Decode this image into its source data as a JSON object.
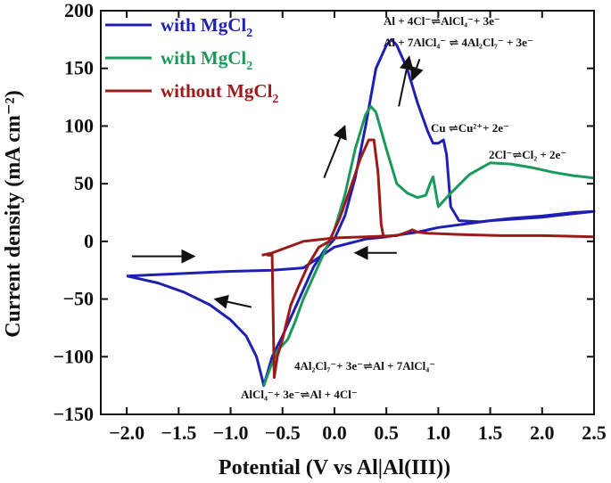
{
  "chart_data": {
    "type": "line",
    "xlabel": "Potential (V vs Al|Al(III))",
    "ylabel": "Current density (mA cm⁻²)",
    "xlim": [
      -2.25,
      2.5
    ],
    "ylim": [
      -150,
      200
    ],
    "xticks": [
      -2.0,
      -1.5,
      -1.0,
      -0.5,
      0.0,
      0.5,
      1.0,
      1.5,
      2.0,
      2.5
    ],
    "xtick_labels": [
      "−2.0",
      "−1.5",
      "−1.0",
      "−0.5",
      "0.0",
      "0.5",
      "1.0",
      "1.5",
      "2.0",
      "2.5"
    ],
    "yticks": [
      -150,
      -100,
      -50,
      0,
      50,
      100,
      150,
      200
    ],
    "ytick_labels": [
      "−150",
      "−100",
      "−50",
      "0",
      "50",
      "100",
      "150",
      "200"
    ],
    "legend_position": "top-left",
    "legend": [
      {
        "label": "with MgCl",
        "sub": "2",
        "color": "#1f1fb4"
      },
      {
        "label": "with MgCl",
        "sub": "2",
        "color": "#1a9a5a"
      },
      {
        "label": "without MgCl",
        "sub": "2",
        "color": "#9b1b1b"
      }
    ],
    "series": [
      {
        "color": "#1f1fb4",
        "x": [
          -2.0,
          -1.7,
          -1.45,
          -1.2,
          -1.0,
          -0.85,
          -0.75,
          -0.7,
          -0.68,
          -0.6,
          -0.5,
          -0.4,
          -0.3,
          -0.2,
          -0.1,
          0.0,
          0.1,
          0.2,
          0.3,
          0.4,
          0.5,
          0.55,
          0.6,
          0.7,
          0.8,
          0.9,
          0.95,
          1.0,
          1.05,
          1.08,
          1.12,
          1.2,
          1.4,
          1.7,
          2.0,
          2.3,
          2.5,
          2.3,
          2.0,
          1.5,
          1.0,
          0.8,
          0.5,
          0.3,
          0.0,
          -0.3,
          -0.6,
          -1.0,
          -1.5,
          -2.0
        ],
        "y": [
          -30,
          -36,
          -44,
          -55,
          -68,
          -82,
          -100,
          -118,
          -125,
          -100,
          -82,
          -62,
          -42,
          -22,
          -8,
          2,
          22,
          55,
          100,
          150,
          170,
          175,
          170,
          150,
          120,
          95,
          85,
          85,
          88,
          75,
          30,
          18,
          17,
          20,
          22,
          25,
          26,
          24,
          21,
          18,
          12,
          8,
          4,
          2,
          -5,
          -23,
          -25,
          -26,
          -28,
          -30
        ]
      },
      {
        "color": "#1a9a5a",
        "x": [
          -0.68,
          -0.62,
          -0.55,
          -0.45,
          -0.38,
          -0.3,
          -0.2,
          -0.1,
          0.0,
          0.1,
          0.2,
          0.3,
          0.35,
          0.4,
          0.5,
          0.6,
          0.7,
          0.8,
          0.88,
          0.92,
          0.95,
          1.0,
          1.1,
          1.3,
          1.5,
          1.7,
          1.9,
          2.1,
          2.3,
          2.5
        ],
        "y": [
          -125,
          -110,
          -95,
          -85,
          -70,
          -50,
          -30,
          -10,
          10,
          40,
          80,
          110,
          117,
          112,
          80,
          50,
          42,
          38,
          40,
          50,
          56,
          30,
          40,
          58,
          68,
          67,
          64,
          60,
          57,
          55
        ]
      },
      {
        "color": "#9b1b1b",
        "x": [
          -0.65,
          -0.65,
          -0.6,
          -0.58,
          -0.55,
          -0.5,
          -0.42,
          -0.35,
          -0.25,
          -0.15,
          -0.05,
          0.05,
          0.15,
          0.25,
          0.33,
          0.38,
          0.42,
          0.45,
          0.47,
          0.5,
          0.55,
          0.6,
          0.7,
          0.75,
          0.8,
          0.9,
          1.2,
          1.6,
          2.0,
          2.5
        ],
        "y": [
          -12,
          -12,
          -12,
          -118,
          -100,
          -85,
          -55,
          -40,
          -20,
          -5,
          0,
          20,
          45,
          72,
          88,
          88,
          60,
          15,
          5,
          4,
          5,
          5,
          8,
          10,
          8,
          7,
          6,
          5,
          5,
          4
        ]
      },
      {
        "color": "#9b1b1b",
        "x": [
          0.6,
          0.3,
          0.0,
          -0.3,
          -0.6,
          -0.7
        ],
        "y": [
          5,
          4,
          3,
          0,
          -10,
          -12
        ]
      }
    ],
    "annotations": [
      {
        "id": "a1",
        "main": "Al + 4Cl⁻⇌AlCl₄⁻+ 3e⁻",
        "x": -0.05
      },
      {
        "id": "a2",
        "main": "Al + 7AlCl₄⁻ ⇌ 4Al₂Cl₇⁻ + 3e⁻"
      },
      {
        "id": "a3",
        "main": "Cu ⇌Cu²⁺+ 2e⁻"
      },
      {
        "id": "a4",
        "main": "2Cl⁻⇌Cl₂ + 2e⁻"
      },
      {
        "id": "a5",
        "main": "4Al₂Cl₇⁻+ 3e⁻⇌Al + 7AlCl₄⁻"
      },
      {
        "id": "a6",
        "main": "AlCl₄⁻+ 3e⁻⇌Al + 4Cl⁻"
      }
    ],
    "arrows": [
      {
        "from": [
          -1.95,
          -13
        ],
        "to": [
          -1.35,
          -13
        ]
      },
      {
        "from": [
          0.62,
          117
        ],
        "to": [
          0.72,
          160
        ]
      },
      {
        "from": [
          -0.8,
          -57
        ],
        "to": [
          -1.15,
          -50
        ]
      },
      {
        "from": [
          -0.1,
          55
        ],
        "to": [
          0.1,
          100
        ]
      },
      {
        "from": [
          0.6,
          -10
        ],
        "to": [
          0.2,
          -10
        ]
      },
      {
        "from": [
          0.82,
          158
        ],
        "to": [
          0.75,
          140
        ]
      }
    ]
  }
}
